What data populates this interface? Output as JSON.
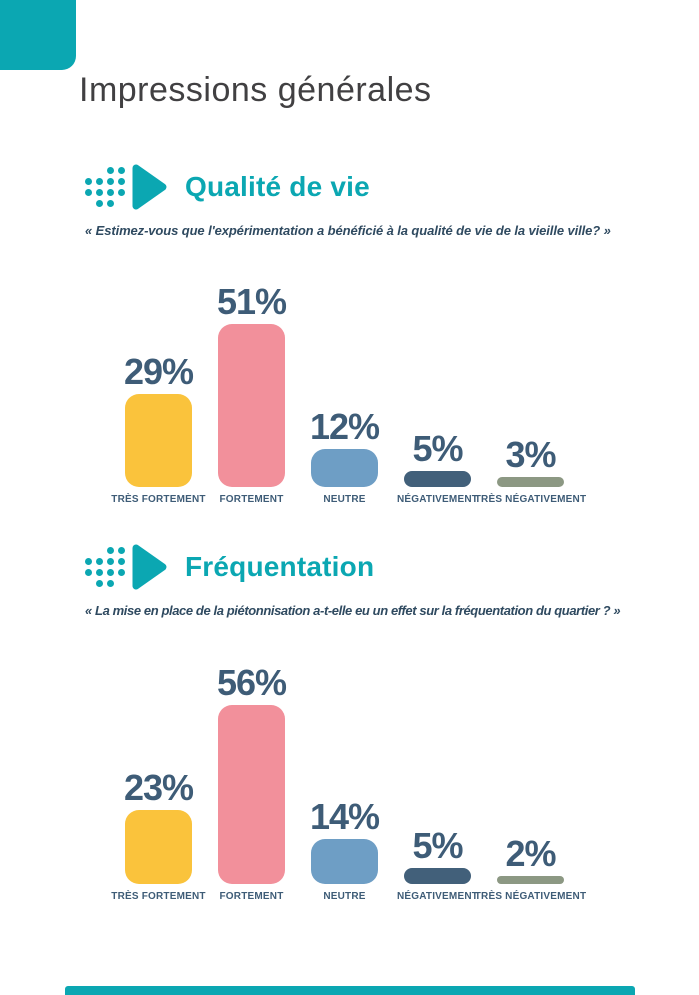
{
  "page": {
    "title": "Impressions générales"
  },
  "colors": {
    "accent_teal": "#0BA7B2",
    "title_gray": "#414042",
    "navy_text": "#3E5C77",
    "bar_yellow": "#FAC33C",
    "bar_pink": "#F2909B",
    "bar_blue": "#6E9EC5",
    "bar_navy": "#42607A",
    "bar_green": "#8C9883"
  },
  "sections": [
    {
      "heading": "Qualité de vie",
      "question": "« Estimez-vous que l'expérimentation a bénéficié à la qualité de vie de la vieille ville? »"
    },
    {
      "heading": "Fréquentation",
      "question": "« La mise en place de la piétonnisation a-t-elle eu un effet sur la fréquentation du quartier ? »"
    }
  ],
  "chart_data": [
    {
      "type": "bar",
      "title": "Qualité de vie",
      "categories": [
        "TRÈS FORTEMENT",
        "FORTEMENT",
        "NEUTRE",
        "NÉGATIVEMENT",
        "TRÈS NÉGATIVEMENT"
      ],
      "values": [
        29,
        51,
        12,
        5,
        3
      ],
      "value_labels": [
        "29%",
        "51%",
        "12%",
        "5%",
        "3%"
      ],
      "bar_colors": [
        "#FAC33C",
        "#F2909B",
        "#6E9EC5",
        "#42607A",
        "#8C9883"
      ],
      "xlabel": "",
      "ylabel": "",
      "ylim": [
        0,
        60
      ],
      "grid": false,
      "legend": false,
      "data_labels_position": "above-bars"
    },
    {
      "type": "bar",
      "title": "Fréquentation",
      "categories": [
        "TRÈS FORTEMENT",
        "FORTEMENT",
        "NEUTRE",
        "NÉGATIVEMENT",
        "TRÈS NÉGATIVEMENT"
      ],
      "values": [
        23,
        56,
        14,
        5,
        2
      ],
      "value_labels": [
        "23%",
        "56%",
        "14%",
        "5%",
        "2%"
      ],
      "bar_colors": [
        "#FAC33C",
        "#F2909B",
        "#6E9EC5",
        "#42607A",
        "#8C9883"
      ],
      "xlabel": "",
      "ylabel": "",
      "ylim": [
        0,
        60
      ],
      "grid": false,
      "legend": false,
      "data_labels_position": "above-bars"
    }
  ]
}
